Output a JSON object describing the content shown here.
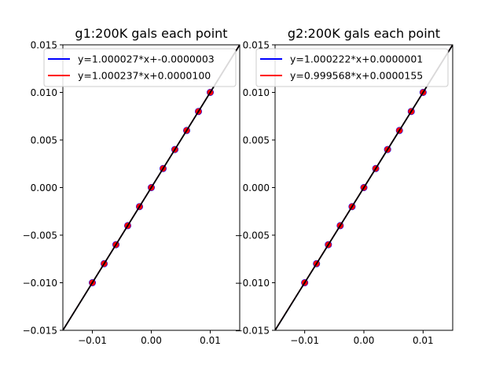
{
  "chart_data": [
    {
      "type": "scatter",
      "title": "g1:200K gals each point",
      "xlabel": "",
      "ylabel": "",
      "xlim": [
        -0.015,
        0.015
      ],
      "ylim": [
        -0.015,
        0.015
      ],
      "x_ticks": [
        -0.01,
        0.0,
        0.01
      ],
      "x_tick_labels": [
        "−0.01",
        "0.00",
        "0.01"
      ],
      "y_ticks": [
        -0.015,
        -0.01,
        -0.005,
        0.0,
        0.005,
        0.01,
        0.015
      ],
      "y_tick_labels": [
        "−0.015",
        "−0.010",
        "−0.005",
        "0.000",
        "0.005",
        "0.010",
        "0.015"
      ],
      "grid": false,
      "legend_position": "top",
      "points": {
        "x": [
          -0.01,
          -0.008,
          -0.006,
          -0.004,
          -0.002,
          0.0,
          0.002,
          0.004,
          0.006,
          0.008,
          0.01
        ],
        "y": [
          -0.01,
          -0.008,
          -0.006,
          -0.004,
          -0.002,
          0.0,
          0.002,
          0.004,
          0.006,
          0.008,
          0.01
        ]
      },
      "reference_line": {
        "slope": 1,
        "intercept": 0,
        "color": "#000000"
      },
      "series": [
        {
          "name": "y=1.000027*x+-0.0000003",
          "slope": 1.000027,
          "intercept": -3e-07,
          "color": "#0000ff"
        },
        {
          "name": "y=1.000237*x+0.0000100",
          "slope": 1.000237,
          "intercept": 1e-05,
          "color": "#ff0000"
        }
      ],
      "marker_color": "#ff0000",
      "marker_edge_color": "#0000ff"
    },
    {
      "type": "scatter",
      "title": "g2:200K gals each point",
      "xlabel": "",
      "ylabel": "",
      "xlim": [
        -0.015,
        0.015
      ],
      "ylim": [
        -0.015,
        0.015
      ],
      "x_ticks": [
        -0.01,
        0.0,
        0.01
      ],
      "x_tick_labels": [
        "−0.01",
        "0.00",
        "0.01"
      ],
      "y_ticks": [
        -0.015,
        -0.01,
        -0.005,
        0.0,
        0.005,
        0.01,
        0.015
      ],
      "y_tick_labels": [
        "−0.015",
        "−0.010",
        "−0.005",
        "0.000",
        "0.005",
        "0.010",
        "0.015"
      ],
      "grid": false,
      "legend_position": "top",
      "points": {
        "x": [
          -0.01,
          -0.008,
          -0.006,
          -0.004,
          -0.002,
          0.0,
          0.002,
          0.004,
          0.006,
          0.008,
          0.01
        ],
        "y": [
          -0.01,
          -0.008,
          -0.006,
          -0.004,
          -0.002,
          0.0,
          0.002,
          0.004,
          0.006,
          0.008,
          0.01
        ]
      },
      "reference_line": {
        "slope": 1,
        "intercept": 0,
        "color": "#000000"
      },
      "series": [
        {
          "name": "y=1.000222*x+0.0000001",
          "slope": 1.000222,
          "intercept": 1e-07,
          "color": "#0000ff"
        },
        {
          "name": "y=0.999568*x+0.0000155",
          "slope": 0.999568,
          "intercept": 1.55e-05,
          "color": "#ff0000"
        }
      ],
      "marker_color": "#ff0000",
      "marker_edge_color": "#0000ff"
    }
  ]
}
